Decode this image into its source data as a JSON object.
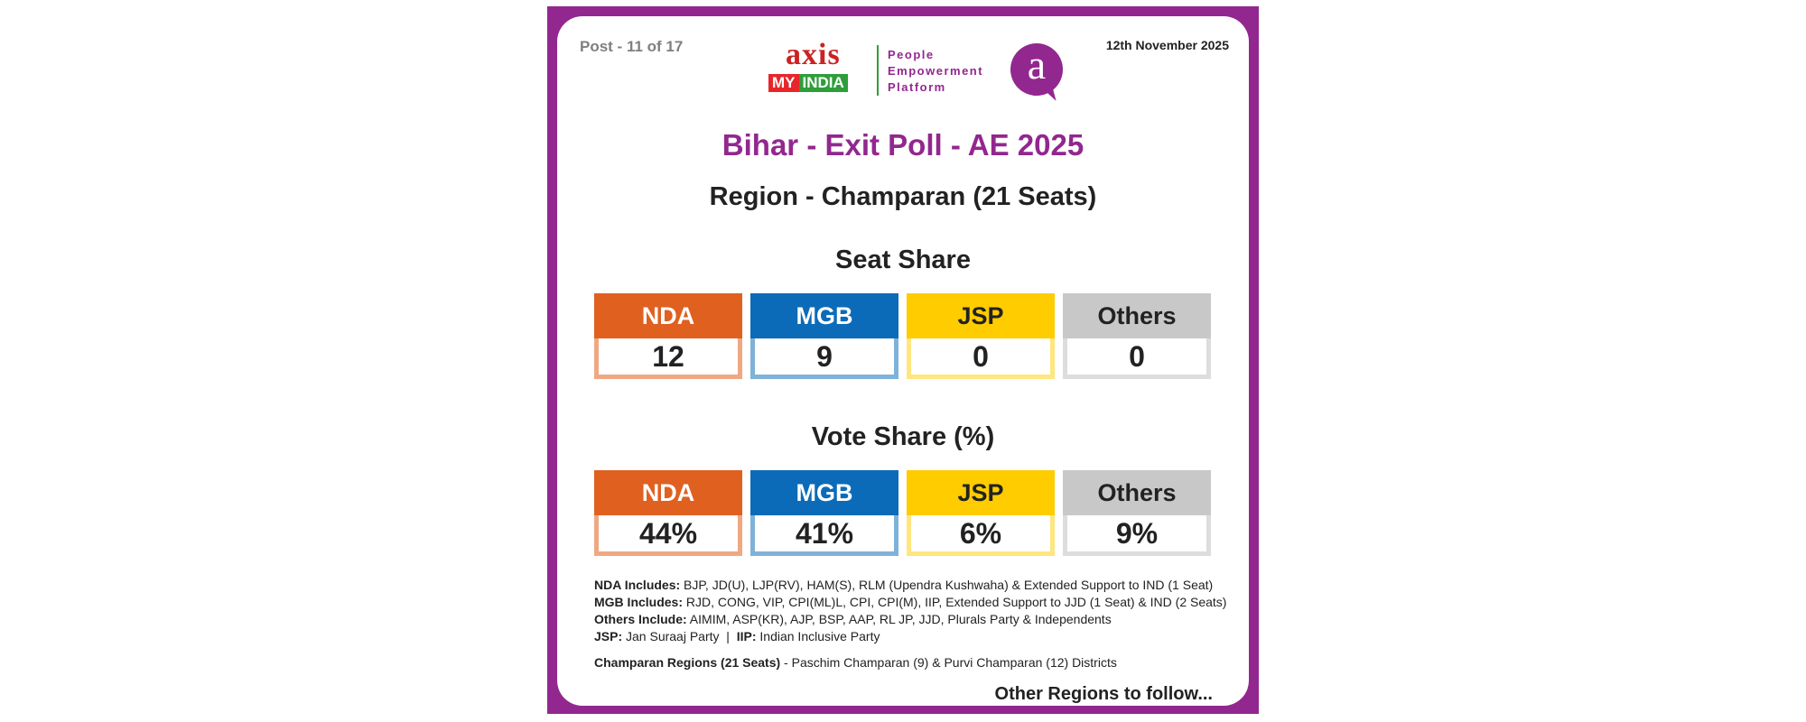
{
  "header": {
    "post": "Post - 11 of 17",
    "date": "12th November 2025"
  },
  "logo": {
    "axis": "axis",
    "my": "MY",
    "india": "INDIA",
    "tagline": [
      "People",
      "Empowerment",
      "Platform"
    ],
    "a_letter": "a"
  },
  "titles": {
    "main": "Bihar - Exit Poll - AE 2025",
    "region": "Region - Champaran (21 Seats)",
    "seat_share": "Seat Share",
    "vote_share": "Vote Share (%)"
  },
  "colors": {
    "frame": "#92278f",
    "NDA": "#e06020",
    "MGB": "#0b6bb8",
    "JSP": "#ffcc00",
    "Others": "#c8c8c8"
  },
  "chart_data": [
    {
      "type": "table",
      "title": "Seat Share",
      "categories": [
        "NDA",
        "MGB",
        "JSP",
        "Others"
      ],
      "values": [
        12,
        9,
        0,
        0
      ],
      "labels": [
        "12",
        "9",
        "0",
        "0"
      ]
    },
    {
      "type": "table",
      "title": "Vote Share (%)",
      "categories": [
        "NDA",
        "MGB",
        "JSP",
        "Others"
      ],
      "values": [
        44,
        41,
        6,
        9
      ],
      "labels": [
        "44%",
        "41%",
        "6%",
        "9%"
      ]
    }
  ],
  "notes": {
    "nda_label": "NDA Includes:",
    "nda_text": " BJP, JD(U), LJP(RV), HAM(S), RLM (Upendra Kushwaha) & Extended Support to IND (1 Seat)",
    "mgb_label": "MGB Includes:",
    "mgb_text": " RJD, CONG, VIP, CPI(ML)L, CPI, CPI(M), IIP, Extended Support to JJD (1 Seat) & IND (2 Seats)",
    "others_label": "Others Include:",
    "others_text": " AIMIM, ASP(KR), AJP, BSP, AAP, RL JP, JJD, Plurals Party & Independents",
    "jsp_label": "JSP:",
    "jsp_text": " Jan Suraaj Party  |  ",
    "iip_label": "IIP:",
    "iip_text": " Indian Inclusive Party",
    "regions_label": "Champaran Regions (21 Seats)",
    "regions_text": " - Paschim Champaran (9) & Purvi Champaran (12) Districts"
  },
  "footer": {
    "follow": "Other Regions to follow..."
  }
}
